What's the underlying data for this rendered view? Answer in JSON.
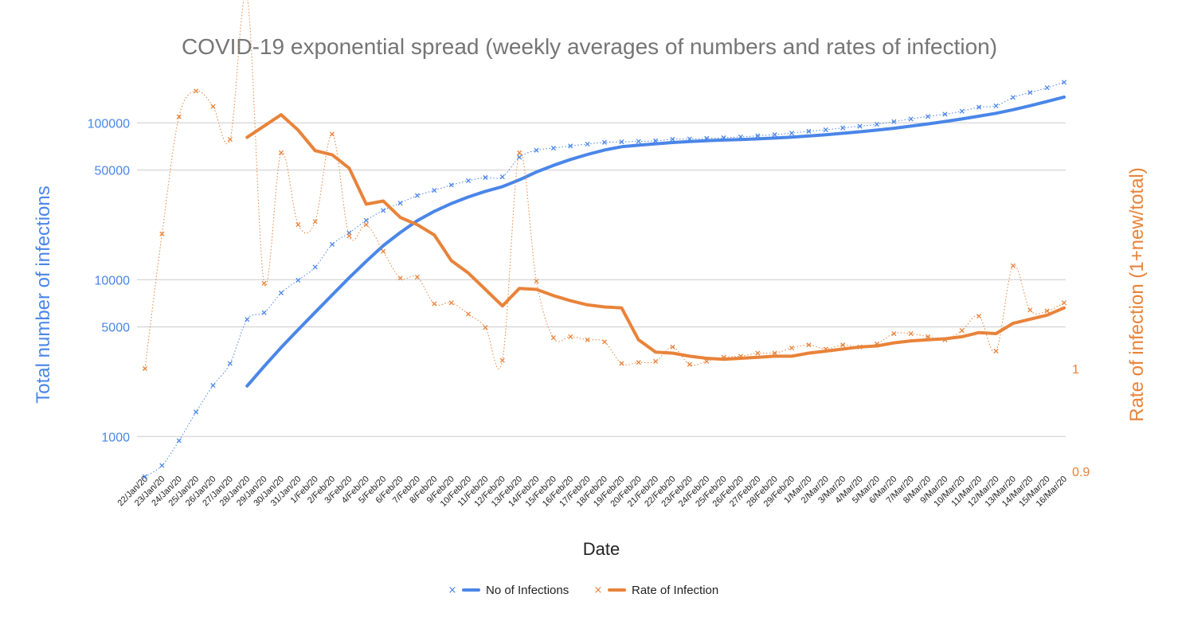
{
  "chart_data": {
    "type": "line",
    "title": "COVID-19 exponential spread (weekly averages of numbers and rates of infection)",
    "xlabel": "Date",
    "ylabel_left": "Total number of infections",
    "ylabel_right": "Rate of infection (1+new/total)",
    "y_left_scale": "log",
    "y_left_range": [
      600,
      200000
    ],
    "y_left_ticks": [
      1000,
      5000,
      10000,
      50000,
      100000
    ],
    "y_right_range": [
      0.9,
      1.285
    ],
    "y_right_ticks": [
      0.9,
      1
    ],
    "grid": true,
    "legend_position": "bottom",
    "categories": [
      "22/Jan/20",
      "23/Jan/20",
      "24/Jan/20",
      "25/Jan/20",
      "26/Jan/20",
      "27/Jan/20",
      "28/Jan/20",
      "29/Jan/20",
      "30/Jan/20",
      "31/Jan/20",
      "1/Feb/20",
      "2/Feb/20",
      "3/Feb/20",
      "4/Feb/20",
      "5/Feb/20",
      "6/Feb/20",
      "7/Feb/20",
      "8/Feb/20",
      "9/Feb/20",
      "10/Feb/20",
      "11/Feb/20",
      "12/Feb/20",
      "13/Feb/20",
      "14/Feb/20",
      "15/Feb/20",
      "16/Feb/20",
      "17/Feb/20",
      "18/Feb/20",
      "19/Feb/20",
      "20/Feb/20",
      "21/Feb/20",
      "22/Feb/20",
      "23/Feb/20",
      "24/Feb/20",
      "25/Feb/20",
      "26/Feb/20",
      "27/Feb/20",
      "28/Feb/20",
      "29/Feb/20",
      "1/Mar/20",
      "2/Mar/20",
      "3/Mar/20",
      "4/Mar/20",
      "5/Mar/20",
      "6/Mar/20",
      "7/Mar/20",
      "8/Mar/20",
      "9/Mar/20",
      "10/Mar/20",
      "11/Mar/20",
      "12/Mar/20",
      "13/Mar/20",
      "14/Mar/20",
      "15/Mar/20",
      "16/Mar/20"
    ],
    "series": [
      {
        "name": "No of Infections",
        "axis": "left",
        "style": "points",
        "color": "#4a86e8",
        "values": [
          555,
          654,
          941,
          1434,
          2118,
          2927,
          5578,
          6166,
          8234,
          9927,
          12038,
          16787,
          19881,
          23892,
          27635,
          30817,
          34391,
          37120,
          40150,
          42762,
          44802,
          45221,
          60368,
          66885,
          69030,
          71224,
          73258,
          75136,
          75639,
          76197,
          76819,
          78572,
          78958,
          79561,
          80406,
          81388,
          82746,
          84112,
          86011,
          88369,
          90306,
          92840,
          95120,
          97886,
          101801,
          105847,
          109821,
          113590,
          118620,
          125875,
          128352,
          145205,
          156101,
          167454,
          181574
        ]
      },
      {
        "name": "No of Infections",
        "axis": "left",
        "style": "line",
        "color": "#4a86e8",
        "values": [
          null,
          null,
          null,
          null,
          null,
          null,
          2100,
          2800,
          3700,
          4800,
          6200,
          8000,
          10300,
          13100,
          16500,
          20000,
          23800,
          27300,
          30600,
          33700,
          36600,
          39200,
          43300,
          48600,
          53600,
          58400,
          62900,
          67100,
          70400,
          72000,
          73500,
          74900,
          76000,
          77000,
          77700,
          78300,
          79100,
          80000,
          81100,
          82500,
          84000,
          85800,
          87700,
          89900,
          92400,
          95300,
          98500,
          102000,
          105900,
          110300,
          115000,
          121300,
          128500,
          136900,
          146000
        ]
      },
      {
        "name": "Rate of Infection",
        "axis": "right",
        "style": "points",
        "color": "#e8833a",
        "values": [
          1.0,
          1.131,
          1.245,
          1.27,
          1.255,
          1.223,
          1.362,
          1.083,
          1.21,
          1.14,
          1.143,
          1.228,
          1.129,
          1.14,
          1.114,
          1.088,
          1.089,
          1.063,
          1.064,
          1.053,
          1.04,
          1.008,
          1.21,
          1.085,
          1.03,
          1.031,
          1.028,
          1.026,
          1.005,
          1.006,
          1.007,
          1.021,
          1.004,
          1.007,
          1.011,
          1.012,
          1.015,
          1.015,
          1.02,
          1.023,
          1.019,
          1.023,
          1.021,
          1.024,
          1.034,
          1.034,
          1.031,
          1.028,
          1.037,
          1.051,
          1.017,
          1.1,
          1.057,
          1.056,
          1.064
        ]
      },
      {
        "name": "Rate of Infection",
        "axis": "right",
        "style": "line",
        "color": "#e8833a",
        "values": [
          null,
          null,
          null,
          null,
          null,
          null,
          1.225,
          1.236,
          1.247,
          1.232,
          1.212,
          1.208,
          1.195,
          1.16,
          1.163,
          1.147,
          1.14,
          1.13,
          1.105,
          1.093,
          1.077,
          1.061,
          1.078,
          1.077,
          1.071,
          1.066,
          1.062,
          1.06,
          1.059,
          1.028,
          1.016,
          1.015,
          1.012,
          1.01,
          1.009,
          1.01,
          1.011,
          1.012,
          1.012,
          1.015,
          1.017,
          1.019,
          1.021,
          1.022,
          1.025,
          1.027,
          1.028,
          1.029,
          1.031,
          1.035,
          1.034,
          1.044,
          1.048,
          1.052,
          1.059
        ]
      }
    ]
  }
}
